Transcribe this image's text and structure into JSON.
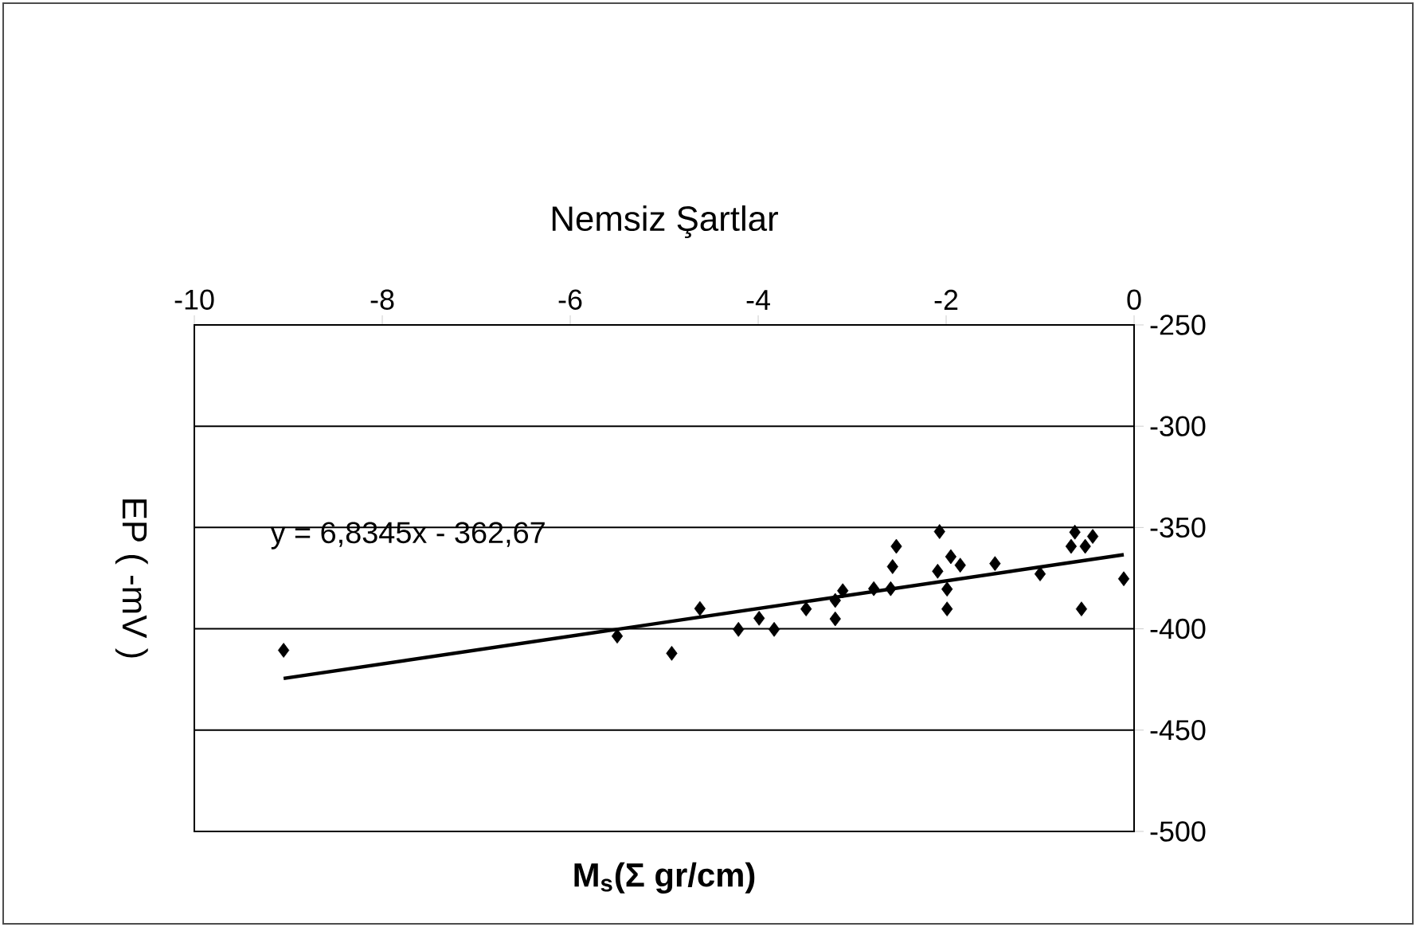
{
  "chart_data": {
    "type": "scatter",
    "title": "Nemsiz Şartlar",
    "xlabel": "M$_{s}$(Σ gr/cm)",
    "ylabel": "EP ( -mV )",
    "annotations": [
      "y = 6,8345x - 362,67"
    ],
    "series": [
      {
        "type": "scatter",
        "color": "#000000",
        "marker": "diamond",
        "x": [
          -9.05,
          -5.5,
          -4.92,
          -4.62,
          -4.21,
          -3.99,
          -3.83,
          -3.49,
          -3.18,
          -3.18,
          -3.1,
          -2.77,
          -2.59,
          -2.57,
          -2.53,
          -2.07,
          -2.09,
          -1.99,
          -1.99,
          -1.95,
          -1.85,
          -1.48,
          -1.0,
          -0.63,
          -0.67,
          -0.52,
          -0.44,
          -0.56,
          -0.11
        ],
        "values": [
          -410.6,
          -403.6,
          -412.1,
          -390,
          -400.3,
          -394.8,
          -400.3,
          -390.2,
          -395.1,
          -386,
          -381.2,
          -380.2,
          -380.2,
          -369.3,
          -359.3,
          -352,
          -371.6,
          -380.4,
          -390.2,
          -364.4,
          -368.6,
          -367.8,
          -372.9,
          -352.3,
          -359.3,
          -359.3,
          -354.4,
          -390.2,
          -375.3
        ]
      },
      {
        "type": "line",
        "color": "#000000",
        "marker": "none",
        "x": [
          -9.05,
          -0.11
        ],
        "values": [
          -424.5,
          -363.4
        ]
      }
    ],
    "xlim": [
      -10,
      0
    ],
    "xticks": [
      -10,
      -8,
      -6,
      -4,
      -2,
      0
    ],
    "ylim": [
      -500,
      -250
    ],
    "yticks": [
      -500,
      -450,
      -400,
      -350,
      -300,
      -250
    ],
    "grid": "y"
  }
}
